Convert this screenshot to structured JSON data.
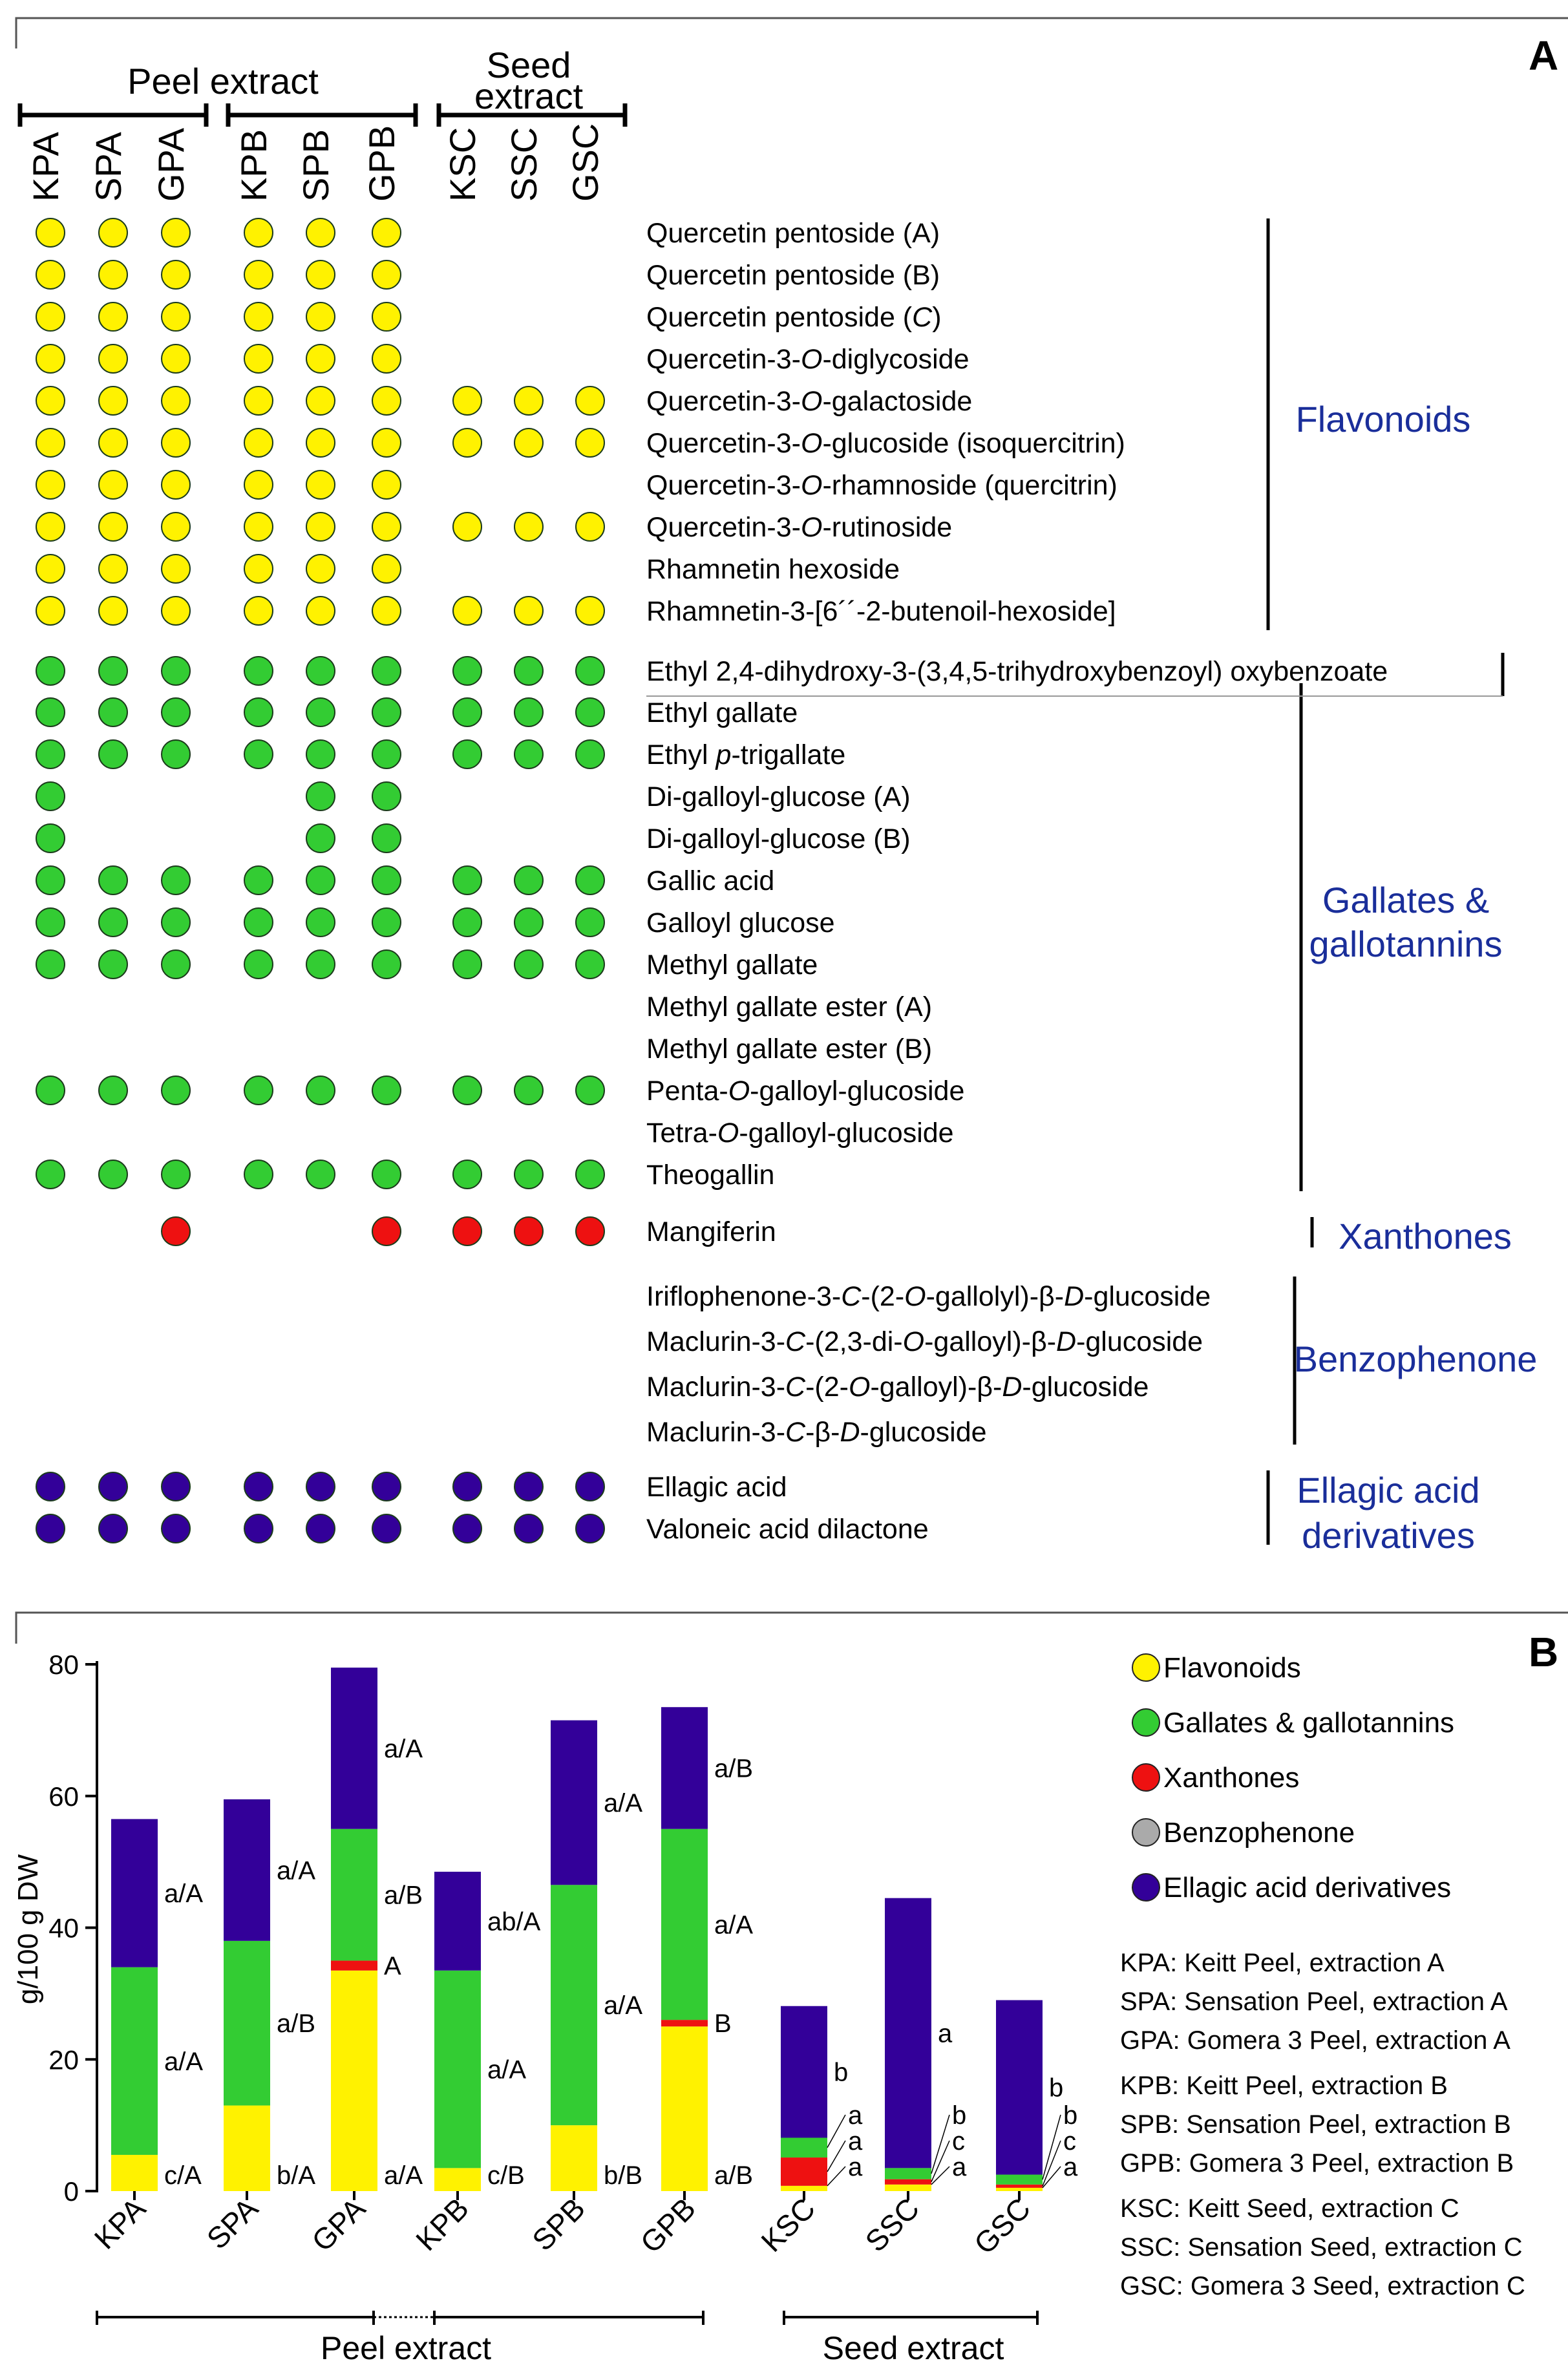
{
  "panel_a": {
    "panel_label": "A",
    "group_headers": {
      "peel": "Peel extract",
      "seed_line1": "Seed",
      "seed_line2": "extract"
    },
    "samples": [
      "KPA",
      "SPA",
      "GPA",
      "KPB",
      "SPB",
      "GPB",
      "KSC",
      "SSC",
      "GSC"
    ],
    "compounds": [
      {
        "name": "Quercetin pentoside (A)",
        "color": "#FFF200",
        "present": [
          1,
          1,
          1,
          1,
          1,
          1,
          0,
          0,
          0
        ]
      },
      {
        "name": "Quercetin pentoside (B)",
        "color": "#FFF200",
        "present": [
          1,
          1,
          1,
          1,
          1,
          1,
          0,
          0,
          0
        ]
      },
      {
        "name": "Quercetin pentoside (C)",
        "color": "#FFF200",
        "present": [
          1,
          1,
          1,
          1,
          1,
          1,
          0,
          0,
          0
        ]
      },
      {
        "name": "Quercetin-3-O-diglycoside",
        "color": "#FFF200",
        "present": [
          1,
          1,
          1,
          1,
          1,
          1,
          0,
          0,
          0
        ]
      },
      {
        "name": "Quercetin-3-O-galactoside",
        "color": "#FFF200",
        "present": [
          1,
          1,
          1,
          1,
          1,
          1,
          1,
          1,
          1
        ]
      },
      {
        "name": "Quercetin-3-O-glucoside (isoquercitrin)",
        "color": "#FFF200",
        "present": [
          1,
          1,
          1,
          1,
          1,
          1,
          1,
          1,
          1
        ]
      },
      {
        "name": "Quercetin-3-O-rhamnoside (quercitrin)",
        "color": "#FFF200",
        "present": [
          1,
          1,
          1,
          1,
          1,
          1,
          0,
          0,
          0
        ]
      },
      {
        "name": "Quercetin-3-O-rutinoside",
        "color": "#FFF200",
        "present": [
          1,
          1,
          1,
          1,
          1,
          1,
          1,
          1,
          1
        ]
      },
      {
        "name": "Rhamnetin hexoside",
        "color": "#FFF200",
        "present": [
          1,
          1,
          1,
          1,
          1,
          1,
          0,
          0,
          0
        ]
      },
      {
        "name": "Rhamnetin-3-[6´´-2-butenoil-hexoside]",
        "color": "#FFF200",
        "present": [
          1,
          1,
          1,
          1,
          1,
          1,
          1,
          1,
          1
        ]
      },
      {
        "name": "Ethyl 2,4-dihydroxy-3-(3,4,5-trihydroxybenzoyl) oxybenzoate",
        "color": "#33CC33",
        "present": [
          1,
          1,
          1,
          1,
          1,
          1,
          1,
          1,
          1
        ]
      },
      {
        "name": "Ethyl gallate",
        "color": "#33CC33",
        "present": [
          1,
          1,
          1,
          1,
          1,
          1,
          1,
          1,
          1
        ]
      },
      {
        "name": "Ethyl p-trigallate",
        "color": "#33CC33",
        "present": [
          1,
          1,
          1,
          1,
          1,
          1,
          1,
          1,
          1
        ]
      },
      {
        "name": "Di-galloyl-glucose (A)",
        "color": "#33CC33",
        "present": [
          1,
          0,
          0,
          0,
          1,
          1,
          0,
          0,
          0
        ]
      },
      {
        "name": "Di-galloyl-glucose (B)",
        "color": "#33CC33",
        "present": [
          1,
          0,
          0,
          0,
          1,
          1,
          0,
          0,
          0
        ]
      },
      {
        "name": "Gallic acid",
        "color": "#33CC33",
        "present": [
          1,
          1,
          1,
          1,
          1,
          1,
          1,
          1,
          1
        ]
      },
      {
        "name": "Galloyl glucose",
        "color": "#33CC33",
        "present": [
          1,
          1,
          1,
          1,
          1,
          1,
          1,
          1,
          1
        ]
      },
      {
        "name": "Methyl gallate",
        "color": "#33CC33",
        "present": [
          1,
          1,
          1,
          1,
          1,
          1,
          1,
          1,
          1
        ]
      },
      {
        "name": "Methyl gallate ester (A)",
        "color": "#33CC33",
        "present": [
          0,
          0,
          0,
          0,
          0,
          0,
          0,
          0,
          0
        ]
      },
      {
        "name": "Methyl gallate ester (B)",
        "color": "#33CC33",
        "present": [
          0,
          0,
          0,
          0,
          0,
          0,
          0,
          0,
          0
        ]
      },
      {
        "name": "Penta-O-galloyl-glucoside",
        "color": "#33CC33",
        "present": [
          1,
          1,
          1,
          1,
          1,
          1,
          1,
          1,
          1
        ]
      },
      {
        "name": "Tetra-O-galloyl-glucoside",
        "color": "#33CC33",
        "present": [
          0,
          0,
          0,
          0,
          0,
          0,
          0,
          0,
          0
        ]
      },
      {
        "name": "Theogallin",
        "color": "#33CC33",
        "present": [
          1,
          1,
          1,
          1,
          1,
          1,
          1,
          1,
          1
        ]
      },
      {
        "name": "Mangiferin",
        "color": "#EE1111",
        "present": [
          0,
          0,
          1,
          0,
          0,
          1,
          1,
          1,
          1
        ]
      },
      {
        "name": "Iriflophenone-3-C-(2-O-gallolyl)-β-D-glucoside",
        "color": "#AAAAAA",
        "present": [
          0,
          0,
          0,
          0,
          0,
          0,
          0,
          0,
          0
        ]
      },
      {
        "name": "Maclurin-3-C-(2,3-di-O-galloyl)-β-D-glucoside",
        "color": "#AAAAAA",
        "present": [
          0,
          0,
          0,
          0,
          0,
          0,
          0,
          0,
          0
        ]
      },
      {
        "name": "Maclurin-3-C-(2-O-galloyl)-β-D-glucoside",
        "color": "#AAAAAA",
        "present": [
          0,
          0,
          0,
          0,
          0,
          0,
          0,
          0,
          0
        ]
      },
      {
        "name": "Maclurin-3-C-β-D-glucoside",
        "color": "#AAAAAA",
        "present": [
          0,
          0,
          0,
          0,
          0,
          0,
          0,
          0,
          0
        ]
      },
      {
        "name": "Ellagic acid",
        "color": "#330099",
        "present": [
          1,
          1,
          1,
          1,
          1,
          1,
          1,
          1,
          1
        ]
      },
      {
        "name": "Valoneic acid dilactone",
        "color": "#330099",
        "present": [
          1,
          1,
          1,
          1,
          1,
          1,
          1,
          1,
          1
        ]
      }
    ],
    "classes": [
      "Flavonoids",
      "Gallates &",
      "gallotannins",
      "Xanthones",
      "Benzophenone",
      "Ellagic acid",
      "derivatives"
    ]
  },
  "chart_data": {
    "type": "bar",
    "stacked": true,
    "panel_label": "B",
    "categories": [
      "KPA",
      "SPA",
      "GPA",
      "KPB",
      "SPB",
      "GPB",
      "KSC",
      "SSC",
      "GSC"
    ],
    "ylabel": "g/100 g DW",
    "ylim": [
      0,
      80
    ],
    "yticks": [
      0,
      20,
      40,
      60,
      80
    ],
    "series": [
      {
        "name": "Flavonoids",
        "color": "#FFF200",
        "values": [
          5.5,
          13,
          33.5,
          3.5,
          10,
          25,
          0.8,
          1.0,
          0.5
        ]
      },
      {
        "name": "Xanthones",
        "color": "#EE1111",
        "values": [
          0,
          0,
          1.5,
          0,
          0,
          1.0,
          4.3,
          0.8,
          0.5
        ]
      },
      {
        "name": "Gallates & gallotannins",
        "color": "#33CC33",
        "values": [
          28.5,
          25,
          20,
          30,
          36.5,
          29,
          3.0,
          1.7,
          1.5
        ]
      },
      {
        "name": "Benzophenone",
        "color": "#AAAAAA",
        "values": [
          0,
          0,
          0,
          0,
          0,
          0,
          0,
          0,
          0
        ]
      },
      {
        "name": "Ellagic acid derivatives",
        "color": "#330099",
        "values": [
          22.5,
          21.5,
          24.5,
          15,
          25,
          18.5,
          20,
          41,
          26.5
        ]
      }
    ],
    "stat_labels": {
      "ellagic": [
        "a/A",
        "a/A",
        "a/A",
        "ab/A",
        "a/A",
        "a/B",
        "b",
        "a",
        "b"
      ],
      "gallates": [
        "a/A",
        "a/B",
        "a/B",
        "a/A",
        "a/A",
        "a/A",
        "a",
        "b",
        "b"
      ],
      "xanthones": [
        "",
        "",
        "A",
        "",
        "",
        "B",
        "a",
        "c",
        "c"
      ],
      "flavonoids": [
        "c/A",
        "b/A",
        "a/A",
        "c/B",
        "b/B",
        "a/B",
        "a",
        "a",
        "a"
      ]
    },
    "group_labels": {
      "peel": "Peel extract",
      "seed": "Seed extract"
    },
    "legend": [
      "Flavonoids",
      "Gallates & gallotannins",
      "Xanthones",
      "Benzophenone",
      "Ellagic acid derivatives"
    ],
    "abbreviations": [
      "KPA: Keitt Peel, extraction A",
      "SPA: Sensation Peel, extraction A",
      "GPA: Gomera 3 Peel, extraction A",
      "KPB: Keitt Peel, extraction B",
      "SPB: Sensation Peel, extraction B",
      "GPB: Gomera 3 Peel, extraction B",
      "KSC: Keitt Seed, extraction C",
      "SSC: Sensation Seed, extraction C",
      "GSC: Gomera 3 Seed, extraction C"
    ]
  }
}
